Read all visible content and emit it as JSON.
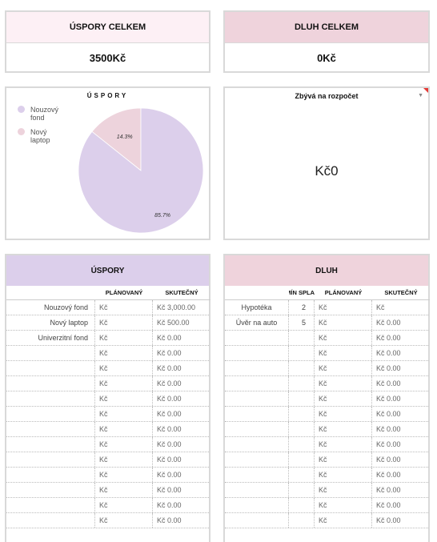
{
  "summary": {
    "savings": {
      "label": "ÚSPORY CELKEM",
      "value": "3500Kč",
      "color": "#fdf0f5"
    },
    "debt": {
      "label": "DLUH CELKEM",
      "value": "0Kč",
      "color": "#efd3dc"
    }
  },
  "pie": {
    "title": "ÚSPORY",
    "legend": [
      {
        "label": "Nouzový fond",
        "color": "#dccfeb"
      },
      {
        "label": "Nový laptop",
        "color": "#edd3dc"
      }
    ],
    "slices": [
      {
        "name": "Nouzový fond",
        "value": 85.7,
        "label": "85.7%",
        "color": "#dccfeb"
      },
      {
        "name": "Nový laptop",
        "value": 14.3,
        "label": "14.3%",
        "color": "#edd3dc"
      }
    ]
  },
  "remaining": {
    "title": "Zbývá na rozpočet",
    "value": "Kč0"
  },
  "savings_table": {
    "title": "ÚSPORY",
    "header_color": "#dccfeb",
    "col_planned": "PLÁNOVANÝ",
    "col_actual": "SKUTEČNÝ",
    "rows": [
      {
        "name": "Nouzový fond",
        "planned_cur": "Kč",
        "actual_cur": "Kč",
        "actual": "3,000.00"
      },
      {
        "name": "Nový laptop",
        "planned_cur": "Kč",
        "actual_cur": "Kč",
        "actual": "500.00"
      },
      {
        "name": "Univerzitní fond",
        "planned_cur": "Kč",
        "actual_cur": "Kč",
        "actual": "0.00"
      },
      {
        "name": "",
        "planned_cur": "Kč",
        "actual_cur": "Kč",
        "actual": "0.00"
      },
      {
        "name": "",
        "planned_cur": "Kč",
        "actual_cur": "Kč",
        "actual": "0.00"
      },
      {
        "name": "",
        "planned_cur": "Kč",
        "actual_cur": "Kč",
        "actual": "0.00"
      },
      {
        "name": "",
        "planned_cur": "Kč",
        "actual_cur": "Kč",
        "actual": "0.00"
      },
      {
        "name": "",
        "planned_cur": "Kč",
        "actual_cur": "Kč",
        "actual": "0.00"
      },
      {
        "name": "",
        "planned_cur": "Kč",
        "actual_cur": "Kč",
        "actual": "0.00"
      },
      {
        "name": "",
        "planned_cur": "Kč",
        "actual_cur": "Kč",
        "actual": "0.00"
      },
      {
        "name": "",
        "planned_cur": "Kč",
        "actual_cur": "Kč",
        "actual": "0.00"
      },
      {
        "name": "",
        "planned_cur": "Kč",
        "actual_cur": "Kč",
        "actual": "0.00"
      },
      {
        "name": "",
        "planned_cur": "Kč",
        "actual_cur": "Kč",
        "actual": "0.00"
      },
      {
        "name": "",
        "planned_cur": "Kč",
        "actual_cur": "Kč",
        "actual": "0.00"
      },
      {
        "name": "",
        "planned_cur": "Kč",
        "actual_cur": "Kč",
        "actual": "0.00"
      }
    ]
  },
  "debt_table": {
    "title": "DLUH",
    "header_color": "#efd3dc",
    "col_term": "TERMÍN SPLA",
    "col_planned": "PLÁNOVANÝ",
    "col_actual": "SKUTEČNÝ",
    "rows": [
      {
        "name": "Hypotéka",
        "term": "2",
        "planned_cur": "Kč",
        "actual_cur": "Kč",
        "actual": ""
      },
      {
        "name": "Úvěr na auto",
        "term": "5",
        "planned_cur": "Kč",
        "actual_cur": "Kč",
        "actual": "0.00"
      },
      {
        "name": "",
        "term": "",
        "planned_cur": "Kč",
        "actual_cur": "Kč",
        "actual": "0.00"
      },
      {
        "name": "",
        "term": "",
        "planned_cur": "Kč",
        "actual_cur": "Kč",
        "actual": "0.00"
      },
      {
        "name": "",
        "term": "",
        "planned_cur": "Kč",
        "actual_cur": "Kč",
        "actual": "0.00"
      },
      {
        "name": "",
        "term": "",
        "planned_cur": "Kč",
        "actual_cur": "Kč",
        "actual": "0.00"
      },
      {
        "name": "",
        "term": "",
        "planned_cur": "Kč",
        "actual_cur": "Kč",
        "actual": "0.00"
      },
      {
        "name": "",
        "term": "",
        "planned_cur": "Kč",
        "actual_cur": "Kč",
        "actual": "0.00"
      },
      {
        "name": "",
        "term": "",
        "planned_cur": "Kč",
        "actual_cur": "Kč",
        "actual": "0.00"
      },
      {
        "name": "",
        "term": "",
        "planned_cur": "Kč",
        "actual_cur": "Kč",
        "actual": "0.00"
      },
      {
        "name": "",
        "term": "",
        "planned_cur": "Kč",
        "actual_cur": "Kč",
        "actual": "0.00"
      },
      {
        "name": "",
        "term": "",
        "planned_cur": "Kč",
        "actual_cur": "Kč",
        "actual": "0.00"
      },
      {
        "name": "",
        "term": "",
        "planned_cur": "Kč",
        "actual_cur": "Kč",
        "actual": "0.00"
      },
      {
        "name": "",
        "term": "",
        "planned_cur": "Kč",
        "actual_cur": "Kč",
        "actual": "0.00"
      },
      {
        "name": "",
        "term": "",
        "planned_cur": "Kč",
        "actual_cur": "Kč",
        "actual": "0.00"
      }
    ]
  }
}
